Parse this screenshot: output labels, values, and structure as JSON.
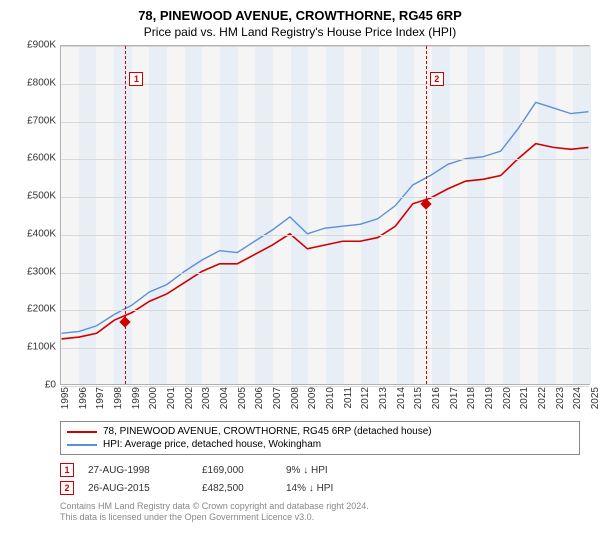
{
  "title_line1": "78, PINEWOOD AVENUE, CROWTHORNE, RG45 6RP",
  "title_line2": "Price paid vs. HM Land Registry's House Price Index (HPI)",
  "chart": {
    "type": "line",
    "background_color": "#f5f5f5",
    "grid_color": "#d8d8d8",
    "border_color": "#b0b0b0",
    "band_color": "#e8eef6",
    "x_years": [
      1995,
      1996,
      1997,
      1998,
      1999,
      2000,
      2001,
      2002,
      2003,
      2004,
      2005,
      2006,
      2007,
      2008,
      2009,
      2010,
      2011,
      2012,
      2013,
      2014,
      2015,
      2016,
      2017,
      2018,
      2019,
      2020,
      2021,
      2022,
      2023,
      2024,
      2025
    ],
    "y_ticks": [
      0,
      100,
      200,
      300,
      400,
      500,
      600,
      700,
      800,
      900
    ],
    "y_tick_labels": [
      "£0",
      "£100K",
      "£200K",
      "£300K",
      "£400K",
      "£500K",
      "£600K",
      "£700K",
      "£800K",
      "£900K"
    ],
    "ylim": [
      0,
      900
    ],
    "series": [
      {
        "name": "property",
        "color": "#d00000",
        "width": 1.6,
        "yvals": [
          120,
          125,
          135,
          170,
          190,
          220,
          240,
          270,
          300,
          320,
          320,
          345,
          370,
          400,
          360,
          370,
          380,
          380,
          390,
          420,
          480,
          495,
          520,
          540,
          545,
          555,
          600,
          640,
          630,
          625,
          630
        ]
      },
      {
        "name": "hpi",
        "color": "#5b8fd6",
        "width": 1.4,
        "yvals": [
          135,
          140,
          155,
          185,
          210,
          245,
          265,
          300,
          330,
          355,
          350,
          380,
          410,
          445,
          400,
          415,
          420,
          425,
          440,
          475,
          530,
          555,
          585,
          600,
          605,
          620,
          680,
          750,
          735,
          720,
          725
        ]
      }
    ],
    "markers": [
      {
        "n": "1",
        "year": 1998.65,
        "ybox": 830,
        "color": "#d00000"
      },
      {
        "n": "2",
        "year": 2015.65,
        "ybox": 830,
        "color": "#d00000"
      }
    ],
    "sale_points": [
      {
        "year": 1998.65,
        "value": 169,
        "color": "#d00000"
      },
      {
        "year": 2015.65,
        "value": 482.5,
        "color": "#d00000"
      }
    ]
  },
  "legend": {
    "items": [
      {
        "label": "78, PINEWOOD AVENUE, CROWTHORNE, RG45 6RP (detached house)",
        "color": "#d00000"
      },
      {
        "label": "HPI: Average price, detached house, Wokingham",
        "color": "#5b8fd6"
      }
    ]
  },
  "events": [
    {
      "n": "1",
      "date": "27-AUG-1998",
      "price": "£169,000",
      "pct": "9%  ↓ HPI",
      "color": "#d00000"
    },
    {
      "n": "2",
      "date": "26-AUG-2015",
      "price": "£482,500",
      "pct": "14%  ↓ HPI",
      "color": "#d00000"
    }
  ],
  "footer": {
    "line1": "Contains HM Land Registry data © Crown copyright and database right 2024.",
    "line2": "This data is licensed under the Open Government Licence v3.0."
  }
}
